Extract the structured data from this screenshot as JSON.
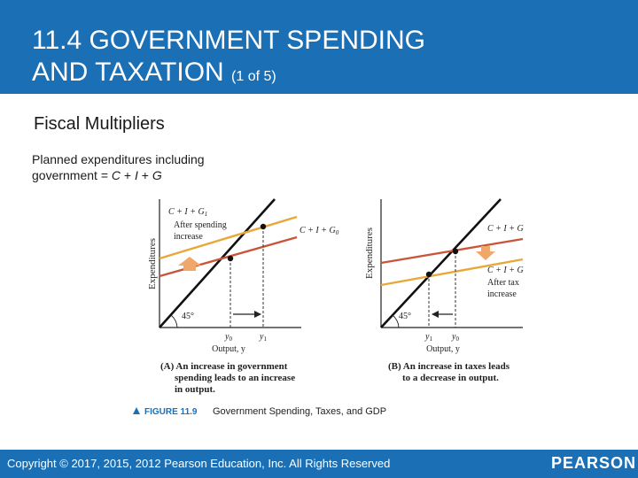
{
  "header": {
    "title_line1": "11.4 GOVERNMENT SPENDING",
    "title_line2": "AND TAXATION",
    "title_suffix": "(1 of 5)"
  },
  "subtitle": "Fiscal Multipliers",
  "body": {
    "text_prefix": "Planned expenditures including government = ",
    "eq_c": "C",
    "plus1": " + ",
    "eq_i": "I",
    "plus2": " + ",
    "eq_g": "G"
  },
  "panel_a": {
    "y_axis_label": "Expenditures",
    "x_axis_label": "Output, y",
    "line_new_label": "C + I + G",
    "line_new_sub": "1",
    "after_label_1": "After spending",
    "after_label_2": "increase",
    "line_orig_label": "C + I + G",
    "line_orig_sub": "0",
    "angle_label": "45°",
    "y0_label": "y",
    "y0_sub": "0",
    "y1_label": "y",
    "y1_sub": "1",
    "caption_1": "(A) An increase in government",
    "caption_2": "spending leads to an increase",
    "caption_3": "in output."
  },
  "panel_b": {
    "y_axis_label": "Expenditures",
    "x_axis_label": "Output, y",
    "line_orig_label": "C + I + G",
    "line_new_label": "C + I + G",
    "after_label_1": "After tax",
    "after_label_2": "increase",
    "angle_label": "45°",
    "y1_label": "y",
    "y1_sub": "1",
    "y0_label": "y",
    "y0_sub": "0",
    "caption_1": "(B) An increase in taxes leads",
    "caption_2": "to a decrease in output."
  },
  "figure": {
    "number": "FIGURE 11.9",
    "caption": "Government Spending, Taxes, and GDP"
  },
  "footer": {
    "copyright": "Copyright © 2017, 2015, 2012 Pearson Education, Inc. All Rights Reserved",
    "brand": "PEARSON"
  },
  "colors": {
    "header_bg": "#1b6fb5",
    "upper_line": "#e8a838",
    "lower_line": "#c8553a",
    "arrow_fill": "#f0a86a"
  }
}
